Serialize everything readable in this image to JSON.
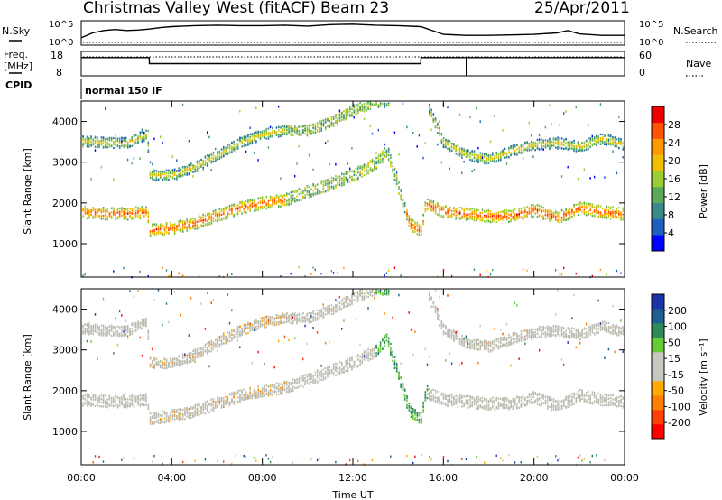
{
  "header": {
    "station": "Christmas Valley West (fitACF)",
    "beam": "Beam 23",
    "date": "25/Apr/2011"
  },
  "summary_panel": {
    "nsky_label": "N.Sky",
    "nsky_ticks": [
      "10^5",
      "10^0"
    ],
    "nsearch_label": "N.Search",
    "nsearch_ticks": [
      "10^5",
      "10^0"
    ],
    "freq_label_1": "Freq.",
    "freq_label_2": "[MHz]",
    "freq_ticks": [
      "18",
      "8"
    ],
    "nave_label": "Nave",
    "nave_ticks": [
      "60",
      "0"
    ],
    "cpid_label": "CPID",
    "cpid_value": "normal 150 IF"
  },
  "colors": {
    "power_scale": [
      "#0000ff",
      "#1f5fbf",
      "#3a8a8a",
      "#5aaa5a",
      "#9acd32",
      "#f0c000",
      "#ff9900",
      "#ff5500",
      "#ee0000"
    ],
    "velocity_scale": [
      "#ff0000",
      "#ff4000",
      "#ff8000",
      "#ffaa00",
      "#c8c8c0",
      "#c8c8c0",
      "#66cc33",
      "#2e8b57",
      "#1f5f8f",
      "#1a33aa"
    ],
    "ground_scatter": "#bbbbb0"
  },
  "chart_data": [
    {
      "type": "line",
      "name": "summary-nsky",
      "x_unit": "hours UT",
      "x": [
        0,
        0.5,
        1,
        1.5,
        2,
        2.5,
        3,
        3.5,
        4,
        4.5,
        5,
        6,
        7,
        8,
        9,
        10,
        11,
        12,
        13,
        14,
        15,
        16,
        17,
        18,
        19,
        20,
        21,
        21.5,
        22,
        23,
        24
      ],
      "series": [
        {
          "name": "N.Sky",
          "values": [
            1.5,
            2.5,
            3.0,
            3.2,
            3.0,
            3.1,
            3.3,
            3.6,
            3.8,
            3.9,
            4.0,
            4.1,
            4.0,
            4.0,
            4.1,
            3.9,
            4.2,
            4.3,
            4.1,
            4.0,
            3.8,
            2.2,
            2.0,
            2.0,
            2.1,
            2.2,
            2.5,
            3.0,
            2.3,
            2.0,
            2.0
          ]
        }
      ],
      "ylim": [
        0,
        5
      ]
    },
    {
      "type": "line",
      "name": "summary-frequency",
      "x": [
        0,
        3,
        3.01,
        15,
        15.01,
        24
      ],
      "series": [
        {
          "name": "Freq.",
          "values": [
            15.5,
            15.5,
            13.0,
            13.0,
            15.5,
            15.5
          ]
        }
      ],
      "ylabel": "Freq. [MHz]",
      "ylim": [
        8,
        18
      ]
    },
    {
      "type": "heatmap",
      "name": "power",
      "xlabel": "Time UT",
      "ylabel": "Slant Range [km]",
      "x_ticks": [
        "00:00",
        "04:00",
        "08:00",
        "12:00",
        "16:00",
        "20:00",
        "00:00"
      ],
      "xlim_hours": [
        0,
        24
      ],
      "y_ticks": [
        1000,
        2000,
        3000,
        4000
      ],
      "ylim": [
        180,
        4500
      ],
      "colorbar": {
        "label": "Power [dB]",
        "ticks": [
          "28",
          "24",
          "20",
          "16",
          "12",
          "8",
          "4"
        ],
        "range": [
          0,
          32
        ]
      },
      "features": [
        {
          "label": "1-hop band",
          "x": [
            0,
            1,
            2,
            2.9,
            3.0,
            4,
            5,
            6,
            7,
            8,
            9,
            10,
            11,
            12,
            13,
            13.5,
            14,
            14.5,
            15,
            15.2,
            16,
            17,
            18,
            19,
            20,
            21,
            22,
            23,
            24
          ],
          "y": [
            1800,
            1760,
            1760,
            1800,
            1350,
            1400,
            1520,
            1720,
            1900,
            2020,
            2100,
            2300,
            2500,
            2700,
            3000,
            3300,
            2400,
            1500,
            1350,
            2000,
            1800,
            1750,
            1700,
            1700,
            1850,
            1650,
            1900,
            1800,
            1750
          ]
        },
        {
          "label": "2-hop band",
          "x": [
            0,
            1,
            2,
            2.9,
            3.0,
            4,
            5,
            6,
            7,
            8,
            9,
            10,
            11,
            12,
            13,
            13.5,
            15.2,
            16,
            17,
            18,
            19,
            20,
            21,
            22,
            23,
            24
          ],
          "y": [
            3550,
            3500,
            3500,
            3700,
            2700,
            2700,
            2900,
            3200,
            3500,
            3700,
            3800,
            3800,
            4000,
            4300,
            4500,
            4500,
            4500,
            3500,
            3200,
            3100,
            3300,
            3450,
            3500,
            3400,
            3600,
            3450
          ]
        }
      ]
    },
    {
      "type": "heatmap",
      "name": "velocity",
      "xlabel": "Time UT",
      "ylabel": "Slant Range [km]",
      "x_ticks": [
        "00:00",
        "04:00",
        "08:00",
        "12:00",
        "16:00",
        "20:00",
        "00:00"
      ],
      "xlim_hours": [
        0,
        24
      ],
      "y_ticks": [
        1000,
        2000,
        3000,
        4000
      ],
      "ylim": [
        180,
        4500
      ],
      "colorbar": {
        "label": "Velocity [m s⁻¹]",
        "ticks": [
          "200",
          "100",
          "50",
          "15",
          "-15",
          "-50",
          "-100",
          "-200"
        ],
        "range": [
          -250,
          250
        ]
      }
    }
  ]
}
